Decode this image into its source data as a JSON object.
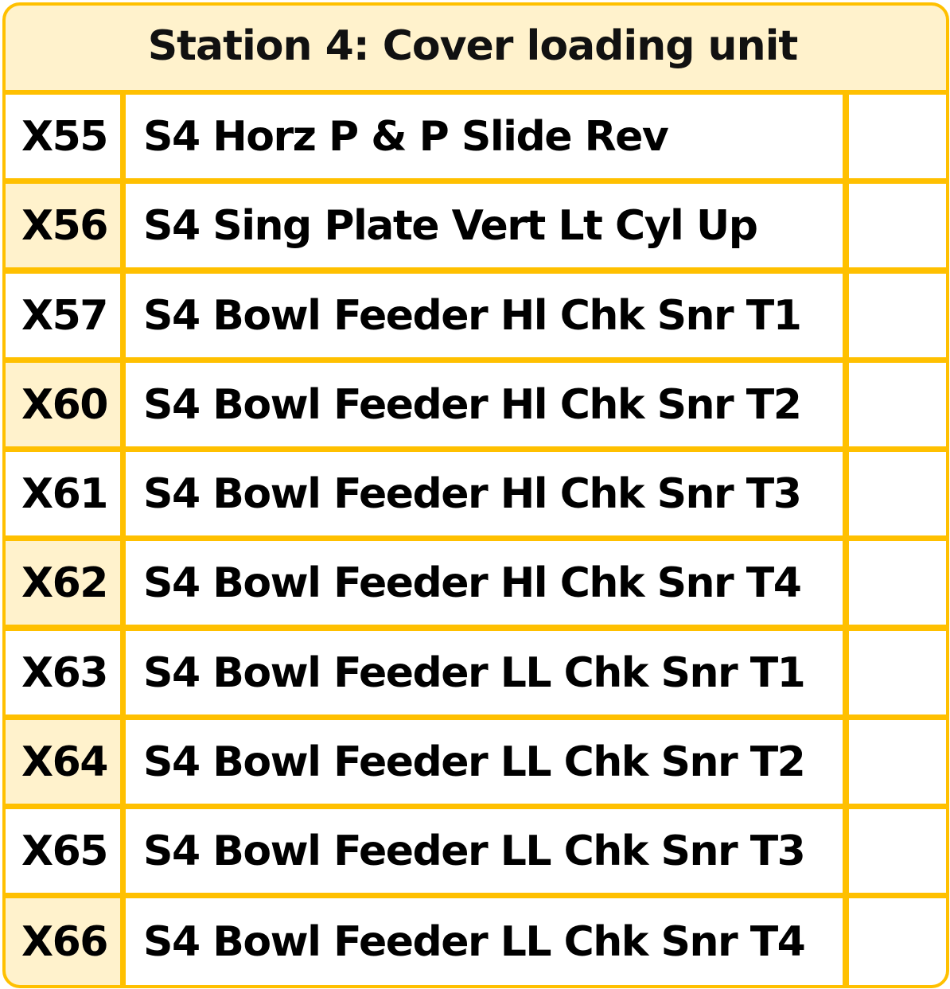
{
  "station": {
    "title": "Station 4: Cover loading unit"
  },
  "rows": [
    {
      "address": "X55",
      "description": "S4 Horz P & P Slide Rev",
      "value": ""
    },
    {
      "address": "X56",
      "description": "S4 Sing Plate Vert Lt Cyl Up",
      "value": ""
    },
    {
      "address": "X57",
      "description": "S4 Bowl Feeder Hl Chk Snr T1",
      "value": ""
    },
    {
      "address": "X60",
      "description": "S4 Bowl Feeder Hl Chk Snr T2",
      "value": ""
    },
    {
      "address": "X61",
      "description": "S4 Bowl Feeder Hl Chk Snr T3",
      "value": ""
    },
    {
      "address": "X62",
      "description": "S4 Bowl Feeder Hl Chk Snr T4",
      "value": ""
    },
    {
      "address": "X63",
      "description": "S4 Bowl Feeder LL Chk Snr T1",
      "value": ""
    },
    {
      "address": "X64",
      "description": "S4 Bowl Feeder LL Chk Snr T2",
      "value": ""
    },
    {
      "address": "X65",
      "description": "S4 Bowl Feeder LL Chk Snr T3",
      "value": ""
    },
    {
      "address": "X66",
      "description": "S4 Bowl Feeder LL Chk Snr T4",
      "value": ""
    }
  ],
  "colors": {
    "border": "#FFC000",
    "header_fill": "#FFF2CC",
    "alt_row_fill": "#FFF2CC"
  }
}
